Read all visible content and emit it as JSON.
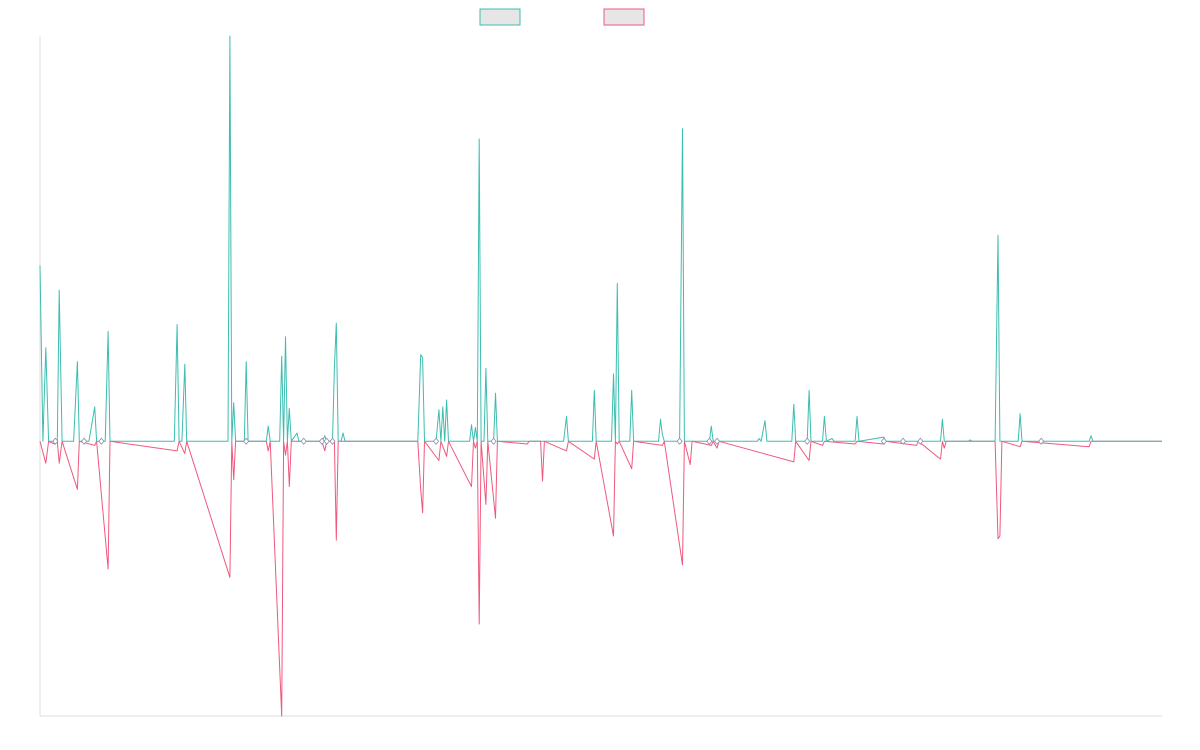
{
  "chart_data": {
    "type": "line",
    "title": "",
    "xlabel": "",
    "ylabel": "",
    "ylim": [
      -400,
      590
    ],
    "grid": false,
    "legend": "top-center",
    "colors": {
      "series_a": "#3dbdb0",
      "series_b": "#f0587e",
      "axis": "#dddddd",
      "legend_fill": "#e6e6e6"
    },
    "series": [
      {
        "name": "",
        "points": [
          [
            0,
            256
          ],
          [
            3,
            0
          ],
          [
            6,
            136
          ],
          [
            9,
            0
          ],
          [
            15,
            0
          ],
          [
            18,
            0
          ],
          [
            20,
            220
          ],
          [
            23,
            0
          ],
          [
            29,
            0
          ],
          [
            35,
            0
          ],
          [
            39,
            116
          ],
          [
            41,
            0
          ],
          [
            46,
            0
          ],
          [
            51,
            0
          ],
          [
            57,
            50
          ],
          [
            59,
            0
          ],
          [
            64,
            0
          ],
          [
            68,
            0
          ],
          [
            71,
            160
          ],
          [
            73,
            0
          ],
          [
            140,
            0
          ],
          [
            143,
            170
          ],
          [
            145,
            0
          ],
          [
            148,
            0
          ],
          [
            151,
            112
          ],
          [
            153,
            0
          ],
          [
            196,
            0
          ],
          [
            198,
            590
          ],
          [
            200,
            0
          ],
          [
            202,
            56
          ],
          [
            204,
            0
          ],
          [
            213,
            0
          ],
          [
            215,
            116
          ],
          [
            217,
            0
          ],
          [
            236,
            0
          ],
          [
            238,
            22
          ],
          [
            240,
            0
          ],
          [
            250,
            0
          ],
          [
            252,
            124
          ],
          [
            254,
            0
          ],
          [
            256,
            152
          ],
          [
            258,
            0
          ],
          [
            260,
            48
          ],
          [
            262,
            0
          ],
          [
            268,
            12
          ],
          [
            270,
            0
          ],
          [
            275,
            0
          ],
          [
            294,
            0
          ],
          [
            297,
            8
          ],
          [
            299,
            0
          ],
          [
            305,
            0
          ],
          [
            307,
            108
          ],
          [
            309,
            172
          ],
          [
            311,
            0
          ],
          [
            314,
            0
          ],
          [
            316,
            12
          ],
          [
            318,
            0
          ],
          [
            394,
            0
          ],
          [
            397,
            126
          ],
          [
            399,
            122
          ],
          [
            401,
            0
          ],
          [
            408,
            0
          ],
          [
            413,
            0
          ],
          [
            416,
            46
          ],
          [
            418,
            0
          ],
          [
            420,
            50
          ],
          [
            422,
            0
          ],
          [
            424,
            60
          ],
          [
            426,
            0
          ],
          [
            448,
            0
          ],
          [
            450,
            24
          ],
          [
            452,
            0
          ],
          [
            454,
            20
          ],
          [
            456,
            0
          ],
          [
            458,
            440
          ],
          [
            460,
            0
          ],
          [
            463,
            0
          ],
          [
            465,
            106
          ],
          [
            467,
            0
          ],
          [
            473,
            0
          ],
          [
            475,
            70
          ],
          [
            477,
            0
          ],
          [
            546,
            0
          ],
          [
            549,
            36
          ],
          [
            551,
            0
          ],
          [
            576,
            0
          ],
          [
            578,
            74
          ],
          [
            580,
            0
          ],
          [
            596,
            0
          ],
          [
            598,
            98
          ],
          [
            600,
            0
          ],
          [
            602,
            230
          ],
          [
            604,
            0
          ],
          [
            615,
            0
          ],
          [
            617,
            74
          ],
          [
            619,
            0
          ],
          [
            645,
            0
          ],
          [
            647,
            32
          ],
          [
            649,
            10
          ],
          [
            651,
            0
          ],
          [
            667,
            0
          ],
          [
            670,
            455
          ],
          [
            672,
            0
          ],
          [
            698,
            0
          ],
          [
            700,
            22
          ],
          [
            702,
            0
          ],
          [
            748,
            0
          ],
          [
            750,
            4
          ],
          [
            752,
            0
          ],
          [
            756,
            30
          ],
          [
            758,
            0
          ],
          [
            784,
            0
          ],
          [
            786,
            54
          ],
          [
            788,
            0
          ],
          [
            800,
            0
          ],
          [
            802,
            74
          ],
          [
            804,
            0
          ],
          [
            816,
            0
          ],
          [
            818,
            36
          ],
          [
            820,
            0
          ],
          [
            826,
            4
          ],
          [
            828,
            0
          ],
          [
            850,
            0
          ],
          [
            852,
            36
          ],
          [
            854,
            0
          ],
          [
            880,
            6
          ],
          [
            882,
            0
          ],
          [
            939,
            0
          ],
          [
            941,
            32
          ],
          [
            943,
            0
          ],
          [
            968,
            0
          ],
          [
            970,
            2
          ],
          [
            972,
            0
          ],
          [
            996,
            0
          ],
          [
            999,
            300
          ],
          [
            1001,
            0
          ],
          [
            1020,
            0
          ],
          [
            1022,
            40
          ],
          [
            1024,
            0
          ],
          [
            1094,
            0
          ],
          [
            1096,
            8
          ],
          [
            1098,
            0
          ],
          [
            1170,
            0
          ]
        ]
      },
      {
        "name": "",
        "points": [
          [
            0,
            0
          ],
          [
            3,
            -16
          ],
          [
            6,
            -32
          ],
          [
            9,
            0
          ],
          [
            15,
            -4
          ],
          [
            18,
            0
          ],
          [
            20,
            -32
          ],
          [
            23,
            0
          ],
          [
            39,
            -70
          ],
          [
            41,
            0
          ],
          [
            57,
            -6
          ],
          [
            59,
            0
          ],
          [
            71,
            -186
          ],
          [
            73,
            0
          ],
          [
            143,
            -14
          ],
          [
            145,
            0
          ],
          [
            151,
            -18
          ],
          [
            153,
            0
          ],
          [
            198,
            -198
          ],
          [
            200,
            0
          ],
          [
            202,
            -56
          ],
          [
            204,
            0
          ],
          [
            236,
            0
          ],
          [
            238,
            -14
          ],
          [
            240,
            0
          ],
          [
            252,
            -400
          ],
          [
            254,
            0
          ],
          [
            256,
            -20
          ],
          [
            258,
            0
          ],
          [
            260,
            -66
          ],
          [
            262,
            0
          ],
          [
            294,
            0
          ],
          [
            297,
            -14
          ],
          [
            299,
            0
          ],
          [
            307,
            0
          ],
          [
            309,
            -144
          ],
          [
            311,
            0
          ],
          [
            394,
            0
          ],
          [
            397,
            -70
          ],
          [
            399,
            -104
          ],
          [
            401,
            0
          ],
          [
            416,
            -28
          ],
          [
            418,
            0
          ],
          [
            424,
            -22
          ],
          [
            426,
            0
          ],
          [
            450,
            -66
          ],
          [
            452,
            0
          ],
          [
            454,
            -10
          ],
          [
            456,
            0
          ],
          [
            458,
            -266
          ],
          [
            460,
            0
          ],
          [
            465,
            -92
          ],
          [
            467,
            0
          ],
          [
            475,
            -112
          ],
          [
            477,
            0
          ],
          [
            508,
            -4
          ],
          [
            510,
            0
          ],
          [
            522,
            0
          ],
          [
            524,
            -58
          ],
          [
            526,
            0
          ],
          [
            549,
            -14
          ],
          [
            551,
            0
          ],
          [
            578,
            -26
          ],
          [
            580,
            0
          ],
          [
            598,
            -138
          ],
          [
            600,
            0
          ],
          [
            602,
            -4
          ],
          [
            604,
            0
          ],
          [
            617,
            -40
          ],
          [
            619,
            0
          ],
          [
            649,
            -6
          ],
          [
            651,
            0
          ],
          [
            670,
            -180
          ],
          [
            672,
            0
          ],
          [
            678,
            -34
          ],
          [
            680,
            0
          ],
          [
            700,
            -6
          ],
          [
            702,
            0
          ],
          [
            706,
            -10
          ],
          [
            708,
            0
          ],
          [
            786,
            -30
          ],
          [
            788,
            0
          ],
          [
            802,
            -28
          ],
          [
            804,
            0
          ],
          [
            816,
            -6
          ],
          [
            818,
            0
          ],
          [
            850,
            -4
          ],
          [
            852,
            0
          ],
          [
            880,
            -4
          ],
          [
            882,
            0
          ],
          [
            914,
            -6
          ],
          [
            916,
            0
          ],
          [
            939,
            -26
          ],
          [
            941,
            0
          ],
          [
            943,
            -10
          ],
          [
            945,
            0
          ],
          [
            996,
            0
          ],
          [
            999,
            -142
          ],
          [
            1001,
            -138
          ],
          [
            1003,
            0
          ],
          [
            1022,
            -8
          ],
          [
            1024,
            0
          ],
          [
            1094,
            -8
          ],
          [
            1096,
            0
          ],
          [
            1170,
            0
          ]
        ]
      }
    ],
    "markers": [
      [
        16,
        0
      ],
      [
        46,
        0
      ],
      [
        64,
        0
      ],
      [
        215,
        0
      ],
      [
        275,
        0
      ],
      [
        294,
        0
      ],
      [
        299,
        0
      ],
      [
        305,
        0
      ],
      [
        413,
        0
      ],
      [
        473,
        0
      ],
      [
        667,
        0
      ],
      [
        698,
        0
      ],
      [
        706,
        0
      ],
      [
        800,
        0
      ],
      [
        880,
        0
      ],
      [
        900,
        0
      ],
      [
        918,
        0
      ],
      [
        1044,
        0
      ]
    ]
  }
}
